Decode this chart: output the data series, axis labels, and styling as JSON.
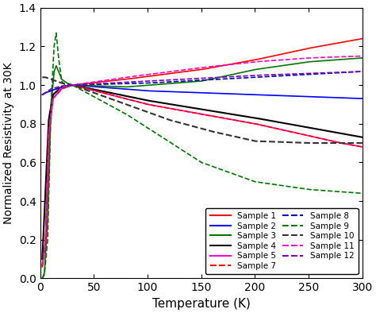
{
  "title": "",
  "xlabel": "Temperature (K)",
  "ylabel": "Normalized Resistivity at 30K",
  "xlim": [
    0,
    300
  ],
  "ylim": [
    0,
    1.4
  ],
  "yticks": [
    0,
    0.2,
    0.4,
    0.6,
    0.8,
    1.0,
    1.2,
    1.4
  ],
  "xticks": [
    0,
    50,
    100,
    150,
    200,
    250,
    300
  ],
  "samples": {
    "Sample 1": {
      "color": "#ff0000",
      "linestyle": "-",
      "lw": 1.2
    },
    "Sample 2": {
      "color": "#0000ff",
      "linestyle": "-",
      "lw": 1.2
    },
    "Sample 3": {
      "color": "#007700",
      "linestyle": "-",
      "lw": 1.2
    },
    "Sample 4": {
      "color": "#000000",
      "linestyle": "-",
      "lw": 1.5
    },
    "Sample 5": {
      "color": "#ff00cc",
      "linestyle": "-",
      "lw": 1.2
    },
    "Sample 7": {
      "color": "#ff0000",
      "linestyle": "--",
      "lw": 1.2
    },
    "Sample 8": {
      "color": "#0000cc",
      "linestyle": "--",
      "lw": 1.2
    },
    "Sample 9": {
      "color": "#007700",
      "linestyle": "--",
      "lw": 1.2
    },
    "Sample 10": {
      "color": "#333333",
      "linestyle": "--",
      "lw": 1.5
    },
    "Sample 11": {
      "color": "#ff00cc",
      "linestyle": "--",
      "lw": 1.2
    },
    "Sample 12": {
      "color": "#7700cc",
      "linestyle": "--",
      "lw": 1.2
    }
  },
  "curves": {
    "Sample 1": [
      [
        2,
        0.06
      ],
      [
        5,
        0.2
      ],
      [
        8,
        0.72
      ],
      [
        12,
        0.95
      ],
      [
        20,
        0.99
      ],
      [
        30,
        1.0
      ],
      [
        80,
        1.03
      ],
      [
        150,
        1.08
      ],
      [
        200,
        1.13
      ],
      [
        250,
        1.19
      ],
      [
        300,
        1.24
      ]
    ],
    "Sample 2": [
      [
        2,
        0.95
      ],
      [
        5,
        0.96
      ],
      [
        10,
        0.97
      ],
      [
        20,
        0.99
      ],
      [
        30,
        1.0
      ],
      [
        100,
        0.97
      ],
      [
        200,
        0.95
      ],
      [
        300,
        0.93
      ]
    ],
    "Sample 3": [
      [
        2,
        0.0
      ],
      [
        4,
        0.03
      ],
      [
        7,
        0.3
      ],
      [
        10,
        0.88
      ],
      [
        13,
        1.07
      ],
      [
        15,
        1.1
      ],
      [
        20,
        1.03
      ],
      [
        25,
        1.01
      ],
      [
        30,
        1.0
      ],
      [
        80,
        0.99
      ],
      [
        150,
        1.02
      ],
      [
        200,
        1.08
      ],
      [
        250,
        1.12
      ],
      [
        300,
        1.14
      ]
    ],
    "Sample 4": [
      [
        2,
        0.1
      ],
      [
        5,
        0.45
      ],
      [
        8,
        0.82
      ],
      [
        12,
        0.95
      ],
      [
        20,
        0.99
      ],
      [
        30,
        1.0
      ],
      [
        100,
        0.92
      ],
      [
        200,
        0.83
      ],
      [
        300,
        0.73
      ]
    ],
    "Sample 5": [
      [
        2,
        0.07
      ],
      [
        5,
        0.18
      ],
      [
        8,
        0.75
      ],
      [
        12,
        0.93
      ],
      [
        20,
        0.98
      ],
      [
        30,
        1.0
      ],
      [
        100,
        0.9
      ],
      [
        200,
        0.8
      ],
      [
        280,
        0.7
      ],
      [
        300,
        0.68
      ]
    ],
    "Sample 7": [
      [
        2,
        0.06
      ],
      [
        5,
        0.18
      ],
      [
        8,
        0.73
      ],
      [
        12,
        0.93
      ],
      [
        20,
        0.98
      ],
      [
        30,
        1.0
      ],
      [
        100,
        0.9
      ],
      [
        200,
        0.8
      ],
      [
        280,
        0.7
      ],
      [
        300,
        0.68
      ]
    ],
    "Sample 8": [
      [
        2,
        0.95
      ],
      [
        5,
        0.96
      ],
      [
        10,
        0.97
      ],
      [
        20,
        0.99
      ],
      [
        30,
        1.0
      ],
      [
        100,
        1.01
      ],
      [
        200,
        1.04
      ],
      [
        300,
        1.07
      ]
    ],
    "Sample 9": [
      [
        2,
        0.0
      ],
      [
        4,
        0.02
      ],
      [
        7,
        0.2
      ],
      [
        10,
        0.88
      ],
      [
        13,
        1.2
      ],
      [
        15,
        1.27
      ],
      [
        17,
        1.15
      ],
      [
        20,
        1.02
      ],
      [
        25,
        0.99
      ],
      [
        30,
        1.0
      ],
      [
        80,
        0.85
      ],
      [
        150,
        0.6
      ],
      [
        200,
        0.5
      ],
      [
        250,
        0.46
      ],
      [
        300,
        0.44
      ]
    ],
    "Sample 10": [
      [
        2,
        1.04
      ],
      [
        5,
        1.04
      ],
      [
        10,
        1.03
      ],
      [
        20,
        1.01
      ],
      [
        30,
        1.0
      ],
      [
        80,
        0.9
      ],
      [
        120,
        0.82
      ],
      [
        160,
        0.76
      ],
      [
        200,
        0.71
      ],
      [
        250,
        0.7
      ],
      [
        300,
        0.7
      ]
    ],
    "Sample 11": [
      [
        2,
        0.07
      ],
      [
        5,
        0.18
      ],
      [
        8,
        0.75
      ],
      [
        12,
        0.93
      ],
      [
        20,
        0.99
      ],
      [
        30,
        1.0
      ],
      [
        80,
        1.04
      ],
      [
        150,
        1.09
      ],
      [
        200,
        1.12
      ],
      [
        250,
        1.14
      ],
      [
        300,
        1.15
      ]
    ],
    "Sample 12": [
      [
        2,
        0.95
      ],
      [
        5,
        0.96
      ],
      [
        10,
        0.98
      ],
      [
        20,
        0.995
      ],
      [
        30,
        1.0
      ],
      [
        100,
        1.02
      ],
      [
        200,
        1.05
      ],
      [
        300,
        1.07
      ]
    ]
  },
  "legend_entries_left": [
    [
      "Sample 1",
      "#ff0000",
      "-"
    ],
    [
      "Sample 2",
      "#0000ff",
      "-"
    ],
    [
      "Sample 3",
      "#007700",
      "-"
    ],
    [
      "Sample 4",
      "#000000",
      "-"
    ],
    [
      "Sample 5",
      "#ff00cc",
      "-"
    ],
    [
      "Sample 7",
      "#ff0000",
      "--"
    ]
  ],
  "legend_entries_right": [
    [
      "Sample 8",
      "#0000cc",
      "--"
    ],
    [
      "Sample 9",
      "#007700",
      "--"
    ],
    [
      "Sample 10",
      "#333333",
      "--"
    ],
    [
      "Sample 11",
      "#ff00cc",
      "--"
    ],
    [
      "Sample 12",
      "#7700cc",
      "--"
    ]
  ]
}
